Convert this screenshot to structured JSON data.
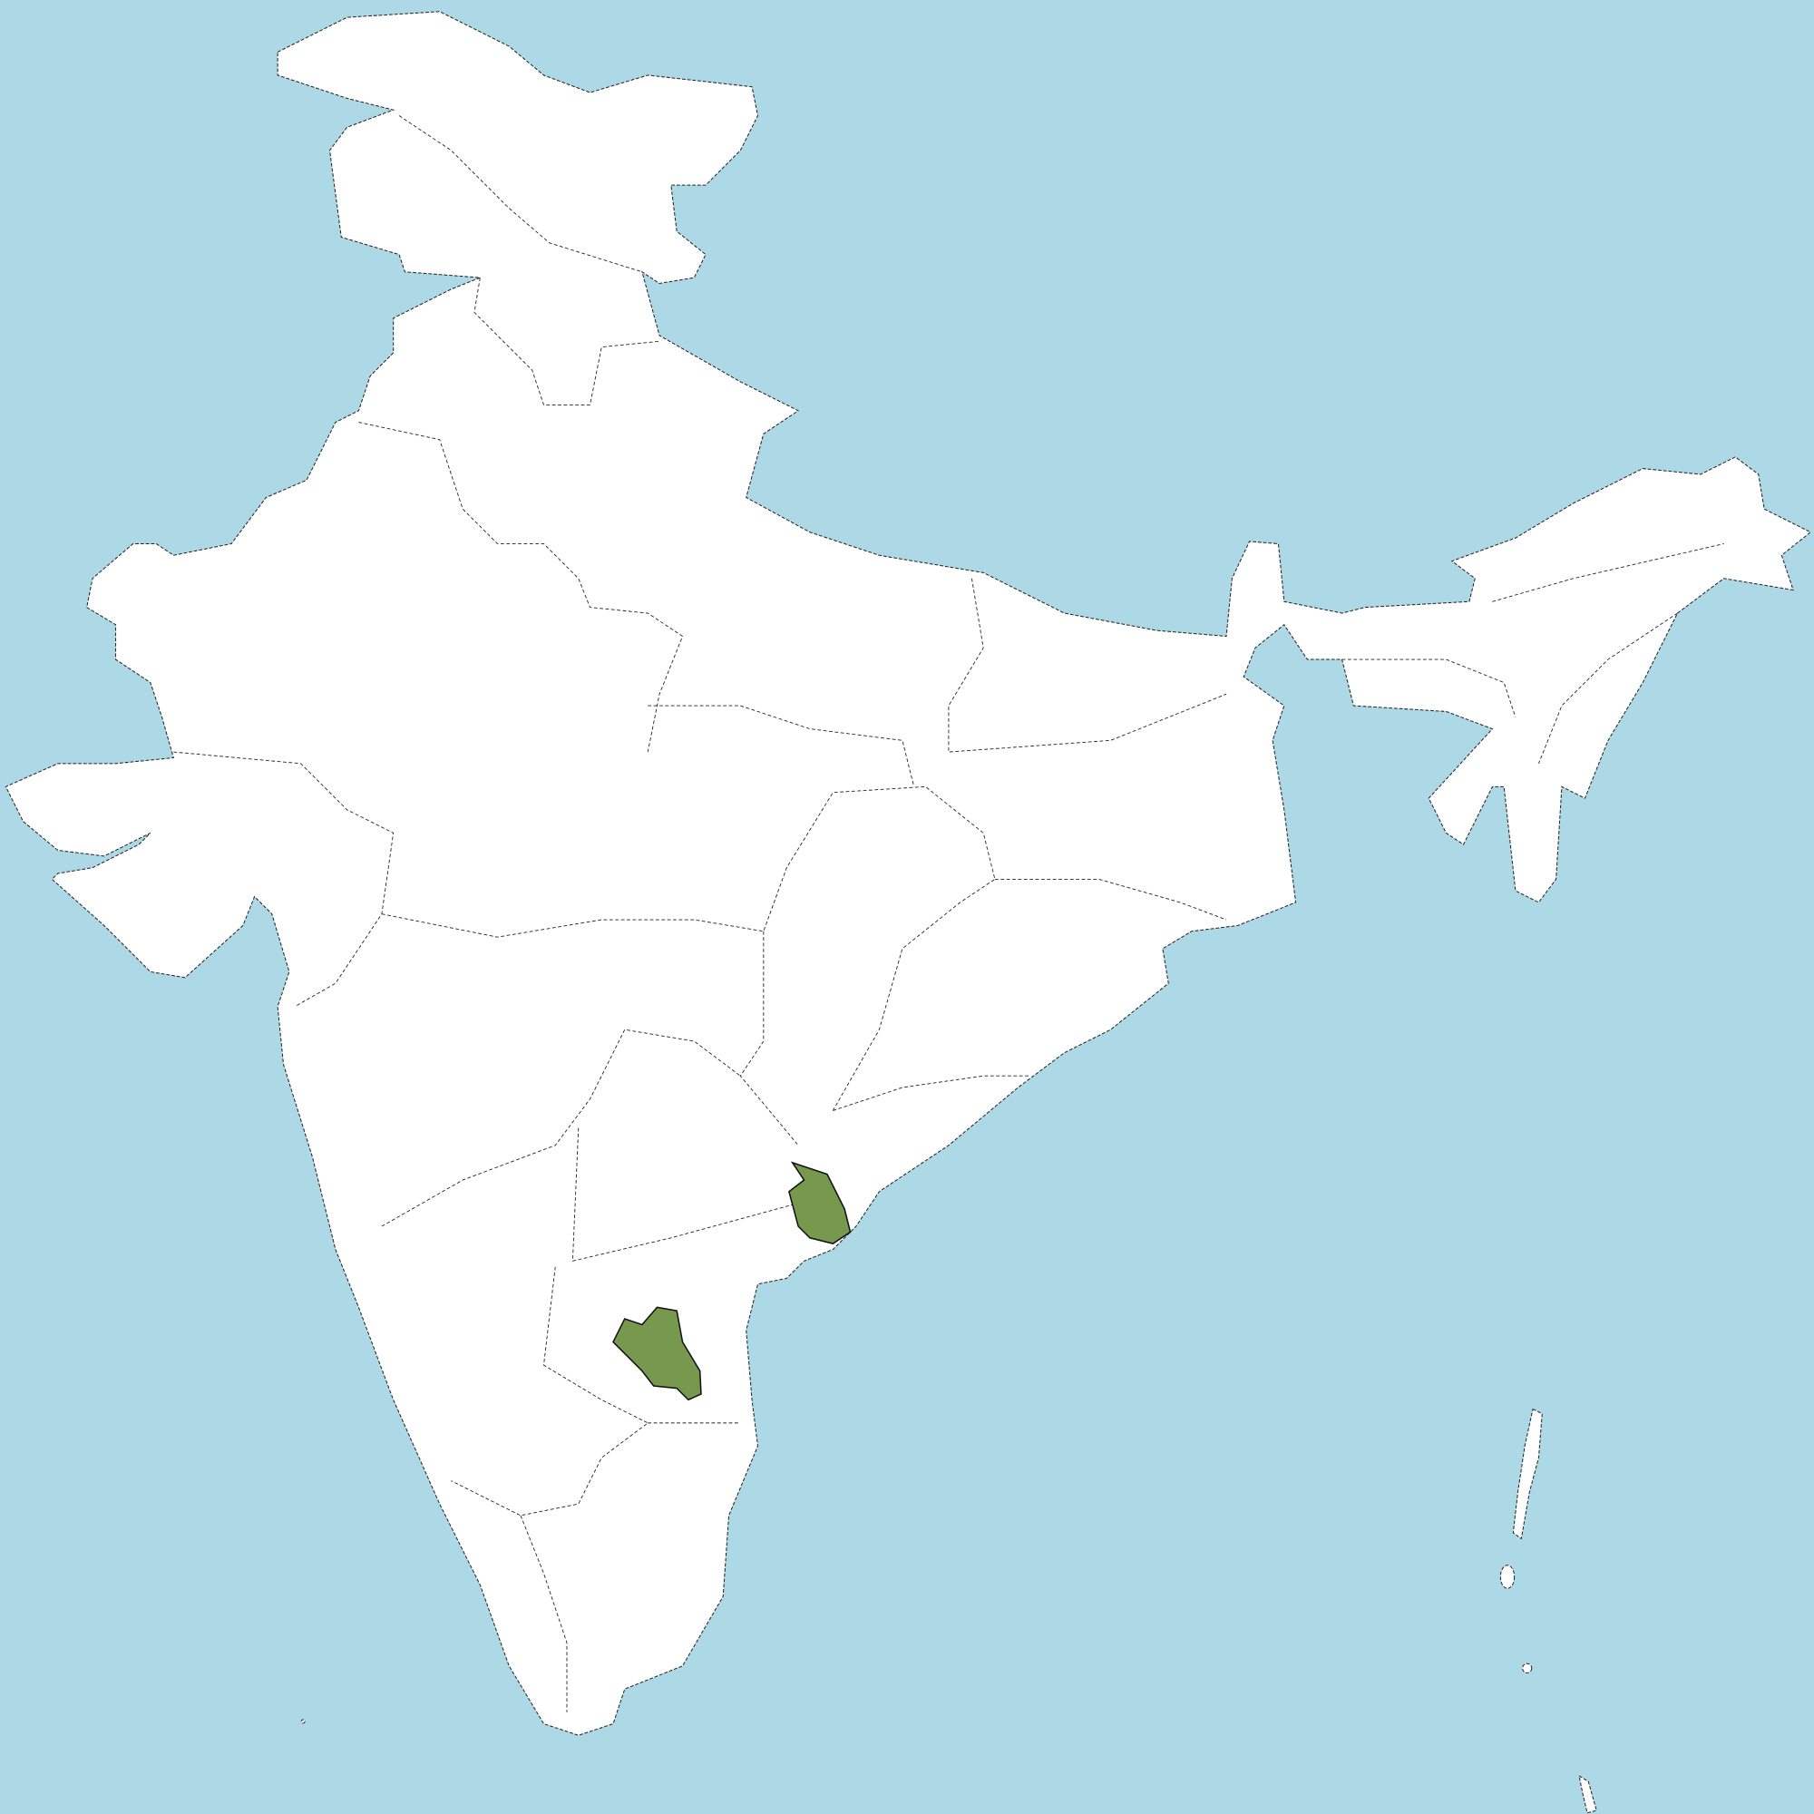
{
  "map": {
    "region": "India",
    "colors": {
      "sea": "#add8e6",
      "land": "#ffffff",
      "highlight": "#76994d",
      "border": "#222222"
    },
    "highlighted_areas_count": 2
  }
}
